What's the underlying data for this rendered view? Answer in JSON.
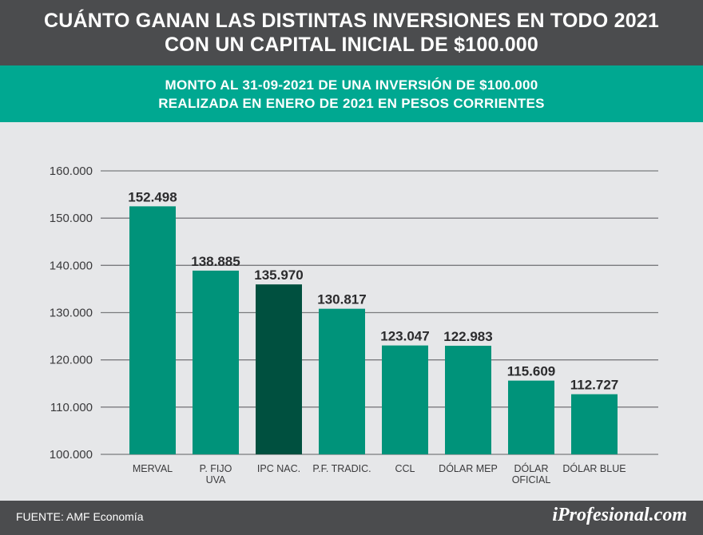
{
  "header": {
    "title_line1": "CUÁNTO GANAN LAS DISTINTAS INVERSIONES EN TODO 2021",
    "title_line2": "CON UN CAPITAL INICIAL DE $100.000"
  },
  "subheader": {
    "line1": "MONTO AL 31-09-2021 DE UNA INVERSIÓN DE $100.000",
    "line2": "REALIZADA EN ENERO DE 2021 EN PESOS CORRIENTES"
  },
  "footer": {
    "source": "FUENTE: AMF Economía",
    "brand": "iProfesional.com"
  },
  "colors": {
    "bar": "#00937a",
    "bar_highlight": "#00503f",
    "header_bg": "#4b4c4e",
    "subheader_bg": "#00a891",
    "grid": "#7a7b7e"
  },
  "chart_data": {
    "type": "bar",
    "title": "CUÁNTO GANAN LAS DISTINTAS INVERSIONES EN TODO 2021 CON UN CAPITAL INICIAL DE $100.000",
    "subtitle": "MONTO AL 31-09-2021 DE UNA INVERSIÓN DE $100.000 REALIZADA EN ENERO DE 2021 EN PESOS CORRIENTES",
    "xlabel": "",
    "ylabel": "",
    "ylim": [
      100000,
      160000
    ],
    "yticks": [
      100000,
      110000,
      120000,
      130000,
      140000,
      150000,
      160000
    ],
    "ytick_labels": [
      "100.000",
      "110.000",
      "120.000",
      "130.000",
      "140.000",
      "150.000",
      "160.000"
    ],
    "grid": true,
    "highlight_index": 2,
    "categories": [
      [
        "MERVAL"
      ],
      [
        "P. FIJO",
        "UVA"
      ],
      [
        "IPC NAC."
      ],
      [
        "P.F. TRADIC."
      ],
      [
        "CCL"
      ],
      [
        "DÓLAR MEP"
      ],
      [
        "DÓLAR",
        "OFICIAL"
      ],
      [
        "DÓLAR BLUE"
      ]
    ],
    "values": [
      152498,
      138885,
      135970,
      130817,
      123047,
      122983,
      115609,
      112727
    ],
    "value_labels": [
      "152.498",
      "138.885",
      "135.970",
      "130.817",
      "123.047",
      "122.983",
      "115.609",
      "112.727"
    ]
  }
}
